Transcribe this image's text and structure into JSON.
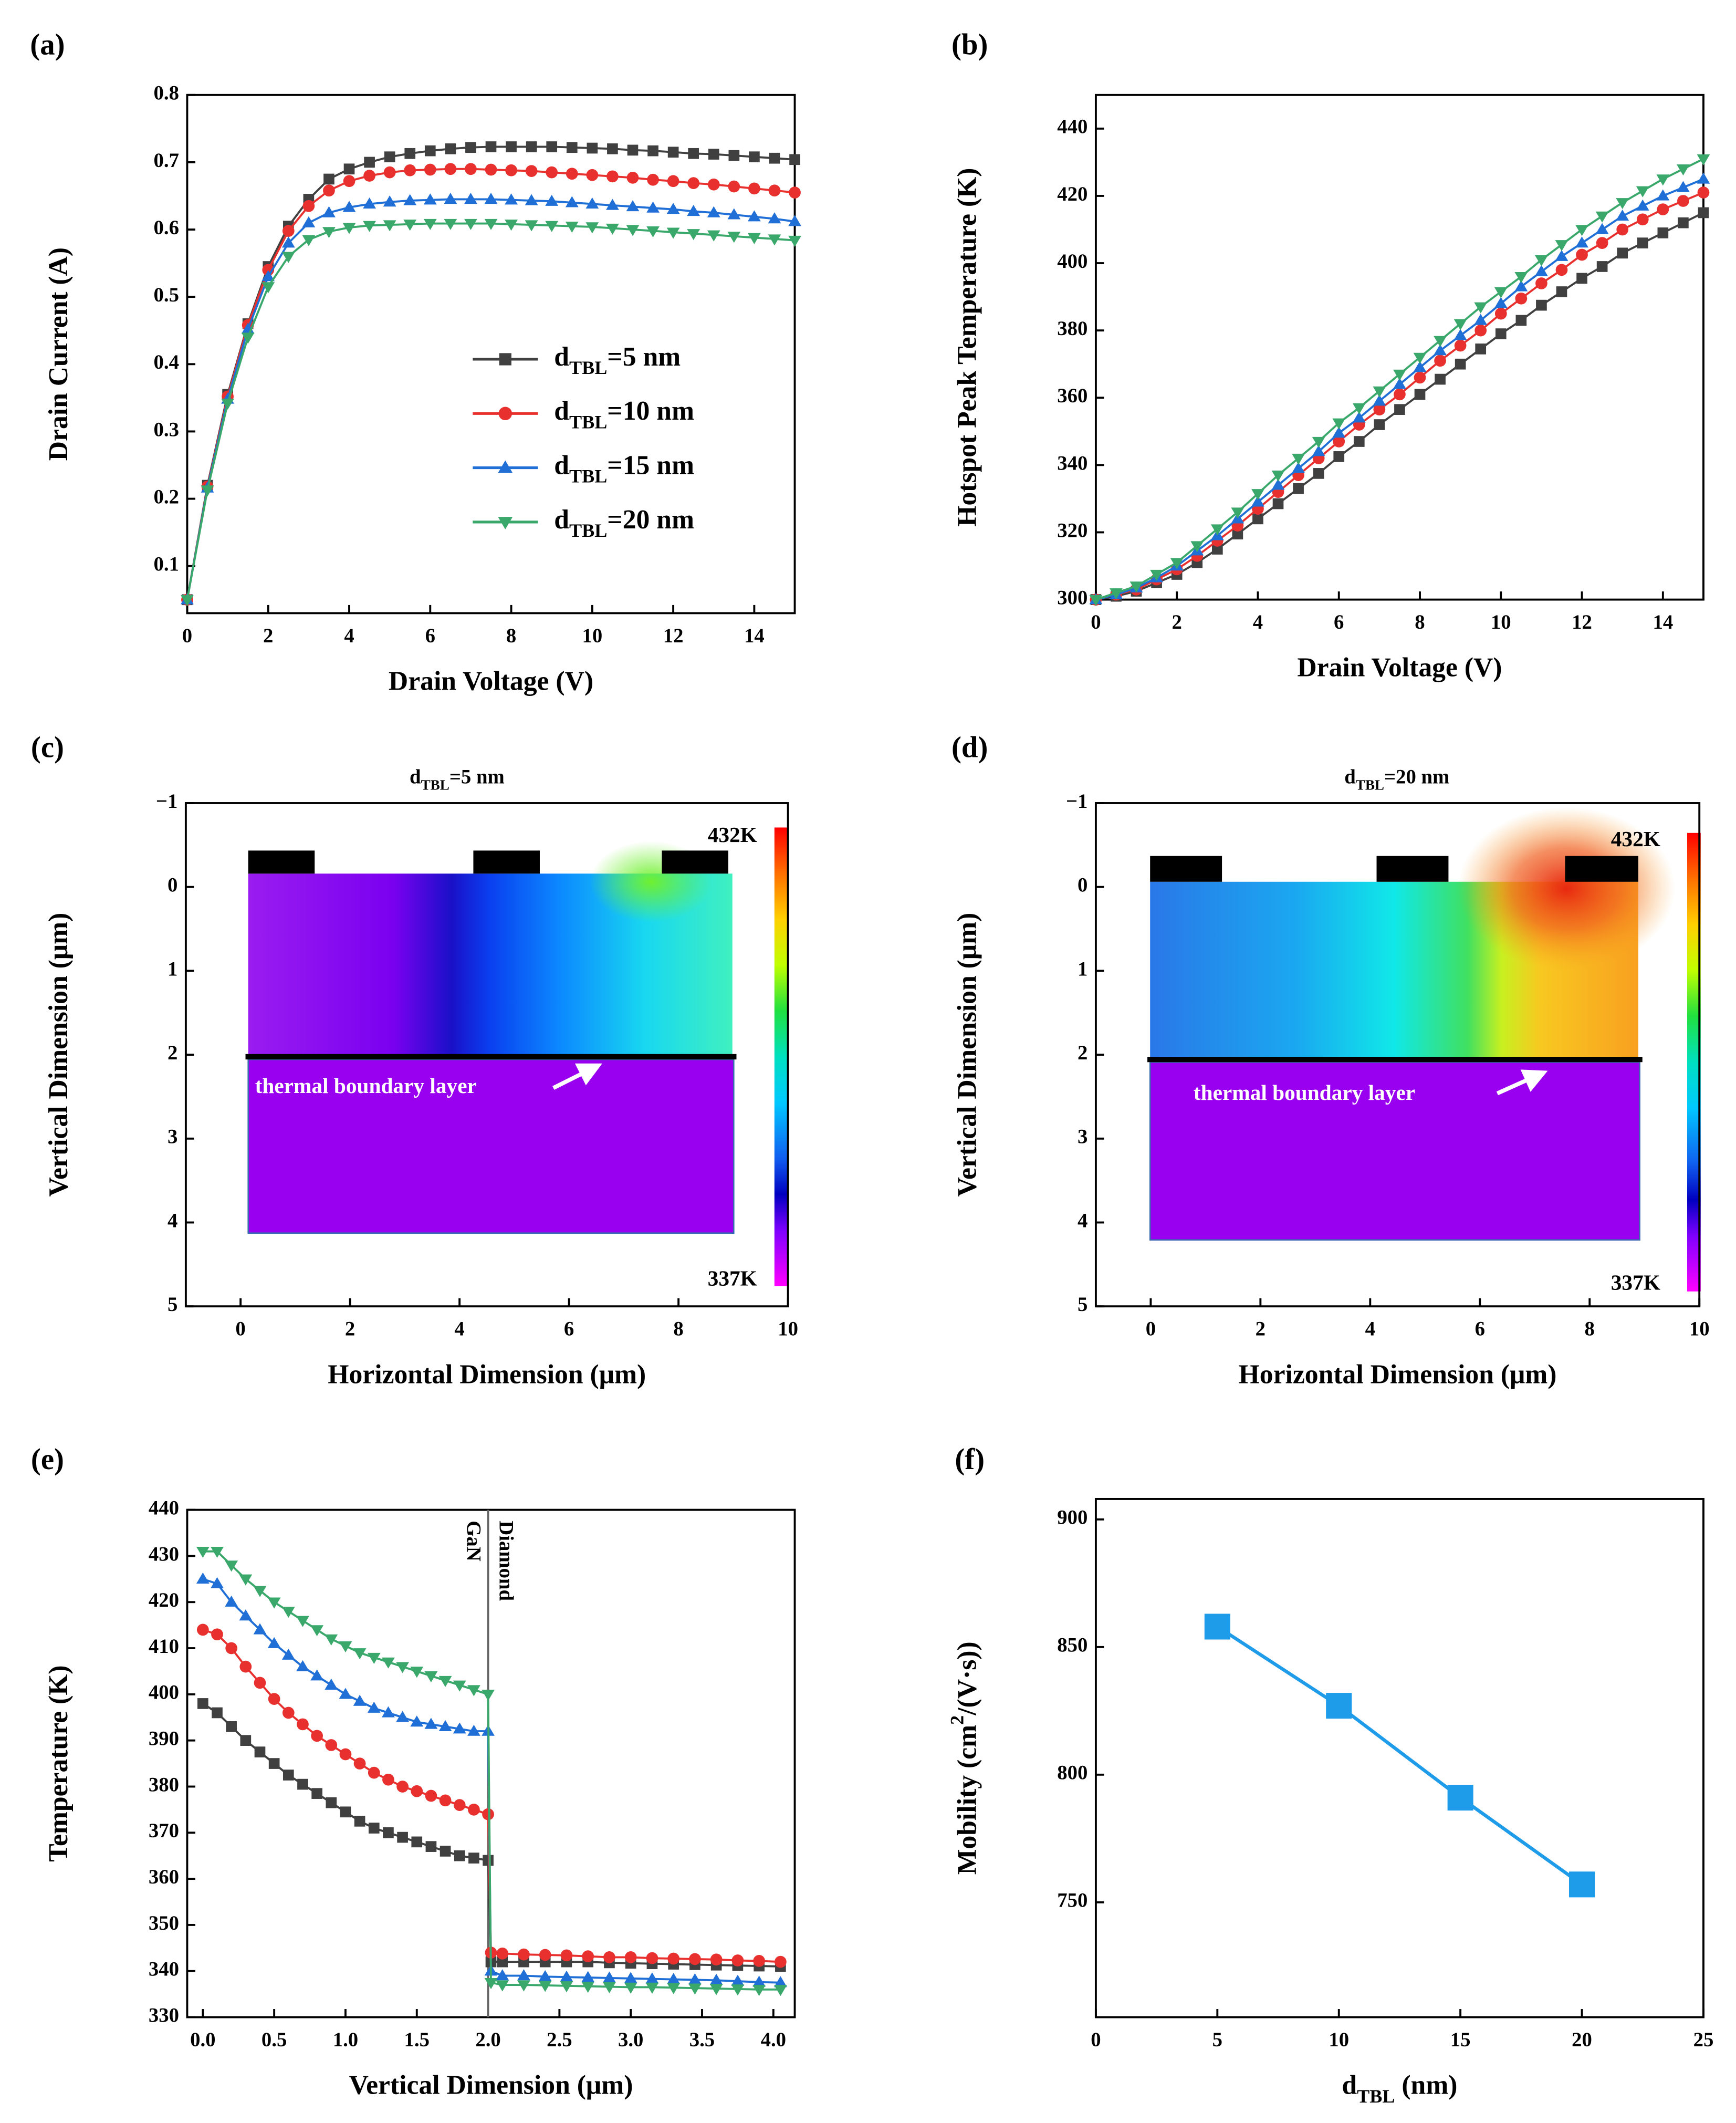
{
  "chart_data": [
    {
      "type": "line",
      "panel_label": "(a)",
      "xlabel": "Drain Voltage (V)",
      "ylabel": "Drain Current (A)",
      "xlim": [
        0,
        15
      ],
      "xticks": [
        0,
        2,
        4,
        6,
        8,
        10,
        12,
        14
      ],
      "ylim": [
        0.03,
        0.8
      ],
      "yticks": [
        0.1,
        0.2,
        0.3,
        0.4,
        0.5,
        0.6,
        0.7,
        0.8
      ],
      "legend": "center-right",
      "x": [
        0,
        0.5,
        1,
        1.5,
        2,
        2.5,
        3,
        3.5,
        4,
        4.5,
        5,
        5.5,
        6,
        6.5,
        7,
        7.5,
        8,
        8.5,
        9,
        9.5,
        10,
        10.5,
        11,
        11.5,
        12,
        12.5,
        13,
        13.5,
        14,
        14.5,
        15
      ],
      "series": [
        {
          "name": "dTBL=5 nm",
          "color": "#404040",
          "marker": "square",
          "values": [
            0.05,
            0.22,
            0.355,
            0.46,
            0.545,
            0.605,
            0.645,
            0.675,
            0.69,
            0.7,
            0.708,
            0.713,
            0.717,
            0.72,
            0.722,
            0.723,
            0.723,
            0.723,
            0.723,
            0.722,
            0.721,
            0.72,
            0.718,
            0.717,
            0.715,
            0.713,
            0.712,
            0.71,
            0.708,
            0.706,
            0.704
          ]
        },
        {
          "name": "dTBL=10 nm",
          "color": "#e8312f",
          "marker": "circle",
          "values": [
            0.05,
            0.218,
            0.352,
            0.458,
            0.54,
            0.598,
            0.635,
            0.658,
            0.672,
            0.68,
            0.685,
            0.688,
            0.689,
            0.69,
            0.69,
            0.689,
            0.688,
            0.687,
            0.685,
            0.683,
            0.681,
            0.679,
            0.677,
            0.674,
            0.672,
            0.669,
            0.667,
            0.664,
            0.661,
            0.658,
            0.655
          ]
        },
        {
          "name": "dTBL=15 nm",
          "color": "#1f6fd6",
          "marker": "triangle-up",
          "values": [
            0.05,
            0.216,
            0.348,
            0.452,
            0.53,
            0.58,
            0.61,
            0.625,
            0.633,
            0.638,
            0.641,
            0.643,
            0.644,
            0.645,
            0.645,
            0.645,
            0.644,
            0.643,
            0.642,
            0.64,
            0.638,
            0.636,
            0.634,
            0.632,
            0.63,
            0.627,
            0.625,
            0.622,
            0.619,
            0.616,
            0.612
          ]
        },
        {
          "name": "dTBL=20 nm",
          "color": "#3aa86b",
          "marker": "triangle-down",
          "values": [
            0.05,
            0.213,
            0.342,
            0.44,
            0.515,
            0.56,
            0.585,
            0.597,
            0.603,
            0.606,
            0.607,
            0.608,
            0.609,
            0.609,
            0.609,
            0.609,
            0.608,
            0.607,
            0.606,
            0.605,
            0.604,
            0.602,
            0.6,
            0.598,
            0.596,
            0.594,
            0.592,
            0.59,
            0.588,
            0.586,
            0.584
          ]
        }
      ]
    },
    {
      "type": "line",
      "panel_label": "(b)",
      "xlabel": "Drain Voltage (V)",
      "ylabel": "Hotspot Peak Temperature (K)",
      "xlim": [
        0,
        15
      ],
      "xticks": [
        0,
        2,
        4,
        6,
        8,
        10,
        12,
        14
      ],
      "ylim": [
        300,
        450
      ],
      "yticks": [
        300,
        320,
        340,
        360,
        380,
        400,
        420,
        440
      ],
      "x": [
        0,
        0.5,
        1,
        1.5,
        2,
        2.5,
        3,
        3.5,
        4,
        4.5,
        5,
        5.5,
        6,
        6.5,
        7,
        7.5,
        8,
        8.5,
        9,
        9.5,
        10,
        10.5,
        11,
        11.5,
        12,
        12.5,
        13,
        13.5,
        14,
        14.5,
        15
      ],
      "series": [
        {
          "color": "#404040",
          "marker": "square",
          "values": [
            300,
            301,
            302.5,
            305,
            307.5,
            311,
            315,
            319.5,
            324,
            328.5,
            333,
            337.5,
            342.5,
            347,
            352,
            356.5,
            361,
            365.5,
            370,
            374.5,
            379,
            383,
            387.5,
            391.5,
            395.5,
            399,
            403,
            406,
            409,
            412,
            415
          ]
        },
        {
          "color": "#e8312f",
          "marker": "circle",
          "values": [
            300,
            301.5,
            303,
            306,
            309,
            313,
            317.5,
            322,
            327,
            332,
            337,
            342,
            347,
            352,
            356.5,
            361,
            366,
            371,
            375.5,
            380,
            385,
            389.5,
            394,
            398,
            402.5,
            406,
            410,
            413,
            416,
            418.5,
            421
          ]
        },
        {
          "color": "#1f6fd6",
          "marker": "triangle-up",
          "values": [
            300,
            301.5,
            303.5,
            306.5,
            310,
            314.5,
            319,
            324,
            329,
            334,
            339,
            344,
            349.5,
            354,
            359,
            364,
            369,
            374,
            378.5,
            383,
            388,
            393,
            397.5,
            402,
            406,
            410,
            414,
            417,
            420,
            422.5,
            425
          ]
        },
        {
          "color": "#3aa86b",
          "marker": "triangle-down",
          "values": [
            300,
            302,
            304,
            307.5,
            311,
            316,
            321,
            326,
            331.5,
            337,
            342,
            347,
            352.5,
            357,
            362,
            367,
            372,
            377,
            382,
            387,
            391.5,
            396,
            401,
            405.5,
            410,
            414,
            418,
            421.5,
            425,
            428,
            431
          ]
        }
      ]
    },
    {
      "type": "contour",
      "panel_label": "(c)",
      "title": "dTBL=5 nm",
      "xlabel": "Horizontal Dimension (μm)",
      "ylabel": "Vertical Dimension (μm)",
      "xlim": [
        -1,
        10
      ],
      "xticks": [
        0,
        2,
        4,
        6,
        8,
        10
      ],
      "ylim": [
        5,
        -1
      ],
      "yticks": [
        {
          "value": -1,
          "label": "−1"
        },
        0,
        1,
        2,
        3,
        4,
        5
      ],
      "colorbar": {
        "max": {
          "value": 432,
          "label": "432K"
        },
        "min": {
          "value": 337,
          "label": "337K"
        }
      },
      "annotation": "thermal boundary layer"
    },
    {
      "type": "contour",
      "panel_label": "(d)",
      "title": "dTBL=20 nm",
      "xlabel": "Horizontal Dimension (μm)",
      "ylabel": "Vertical Dimension (μm)",
      "xlim": [
        -1,
        10
      ],
      "xticks": [
        0,
        2,
        4,
        6,
        8,
        10
      ],
      "ylim": [
        5,
        -1
      ],
      "yticks": [
        {
          "value": -1,
          "label": "−1"
        },
        0,
        1,
        2,
        3,
        4,
        5
      ],
      "colorbar": {
        "max": {
          "value": 432,
          "label": "432K"
        },
        "min": {
          "value": 337,
          "label": "337K"
        }
      },
      "annotation": "thermal boundary layer"
    },
    {
      "type": "line",
      "panel_label": "(e)",
      "xlabel": "Vertical Dimension (μm)",
      "ylabel": "Temperature (K)",
      "xlim": [
        -0.11,
        4.15
      ],
      "xticks": [
        {
          "value": 0,
          "label": "0.0"
        },
        0.5,
        {
          "value": 1,
          "label": "1.0"
        },
        1.5,
        {
          "value": 2,
          "label": "2.0"
        },
        2.5,
        {
          "value": 3,
          "label": "3.0"
        },
        3.5,
        {
          "value": 4,
          "label": "4.0"
        }
      ],
      "ylim": [
        330,
        440
      ],
      "yticks": [
        330,
        340,
        350,
        360,
        370,
        380,
        390,
        400,
        410,
        420,
        430,
        440
      ],
      "divider": 2,
      "annotations": [
        "GaN",
        "Diamond"
      ],
      "x": [
        0,
        0.1,
        0.2,
        0.3,
        0.4,
        0.5,
        0.6,
        0.7,
        0.8,
        0.9,
        1,
        1.1,
        1.2,
        1.3,
        1.4,
        1.5,
        1.6,
        1.7,
        1.8,
        1.9,
        2,
        2.02,
        2.1,
        2.25,
        2.4,
        2.55,
        2.7,
        2.85,
        3,
        3.15,
        3.3,
        3.45,
        3.6,
        3.75,
        3.9,
        4.05
      ],
      "series": [
        {
          "color": "#404040",
          "marker": "square",
          "values": [
            398,
            396,
            393,
            390,
            387.5,
            385,
            382.5,
            380.5,
            378.5,
            376.5,
            374.5,
            372.5,
            371,
            370,
            369,
            368,
            367,
            366,
            365,
            364.5,
            364,
            342,
            342,
            342,
            342,
            342,
            342,
            341.8,
            341.7,
            341.6,
            341.5,
            341.4,
            341.3,
            341.2,
            341.1,
            341
          ]
        },
        {
          "color": "#e8312f",
          "marker": "circle",
          "values": [
            414,
            413,
            410,
            406,
            402.5,
            399,
            396,
            393.5,
            391,
            389,
            387,
            385,
            383,
            381.5,
            380,
            379,
            378,
            377,
            376,
            375,
            374,
            344,
            343.8,
            343.6,
            343.5,
            343.4,
            343.2,
            343,
            343,
            342.8,
            342.7,
            342.6,
            342.5,
            342.3,
            342.2,
            342
          ]
        },
        {
          "color": "#1f6fd6",
          "marker": "triangle-up",
          "values": [
            425,
            424,
            420,
            417,
            414,
            411,
            408.5,
            406,
            404,
            402,
            400,
            398.5,
            397,
            396,
            395,
            394,
            393.5,
            393,
            392.5,
            392,
            392,
            340,
            339,
            339,
            338.8,
            338.7,
            338.6,
            338.5,
            338.4,
            338.3,
            338.2,
            338.1,
            338,
            337.8,
            337.6,
            337.5
          ]
        },
        {
          "color": "#3aa86b",
          "marker": "triangle-down",
          "values": [
            431,
            431,
            428,
            425,
            422.5,
            420,
            418,
            416,
            414,
            412,
            410.5,
            409,
            408,
            407,
            406,
            405,
            404,
            403,
            402,
            401,
            400,
            337.5,
            337,
            337,
            336.9,
            336.8,
            336.7,
            336.6,
            336.5,
            336.5,
            336.4,
            336.3,
            336.2,
            336.1,
            336,
            336
          ]
        }
      ]
    },
    {
      "type": "line",
      "panel_label": "(f)",
      "xlabel": "dTBL (nm)",
      "ylabel": "Mobility (cm2/(V·s))",
      "xlim": [
        0,
        25
      ],
      "xticks": [
        0,
        5,
        10,
        15,
        20,
        25
      ],
      "ylim": [
        705,
        908
      ],
      "yticks": [
        750,
        800,
        850,
        900
      ],
      "x": [
        5,
        10,
        15,
        20
      ],
      "values": [
        858,
        827,
        791,
        757
      ],
      "color": "#1e9be9",
      "marker": "big-square"
    }
  ]
}
